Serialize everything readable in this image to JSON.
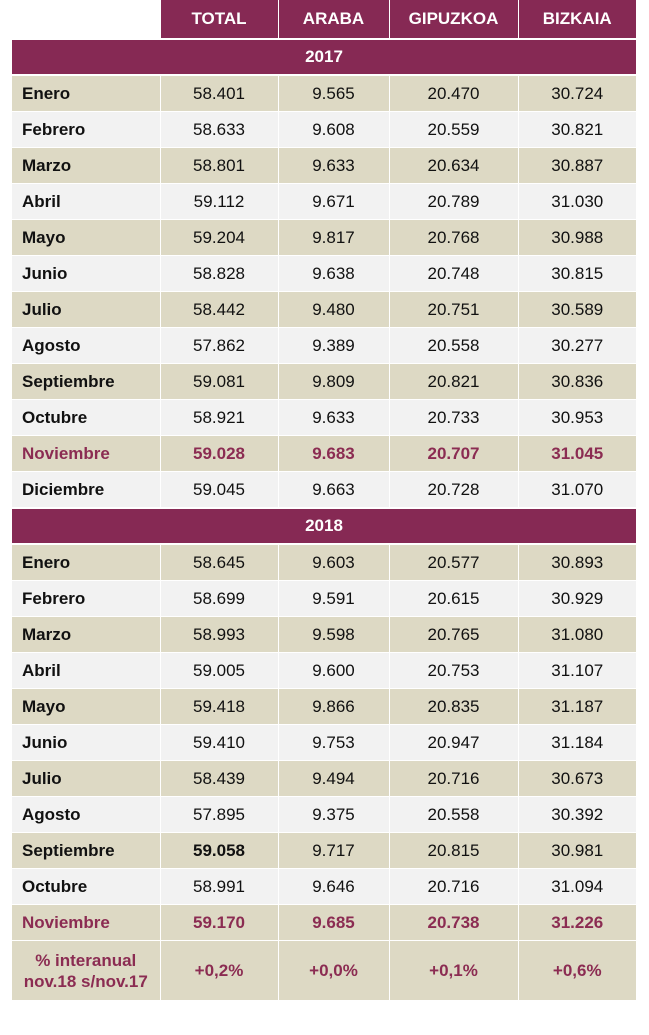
{
  "header": {
    "columns": [
      "TOTAL",
      "ARABA",
      "GIPUZKOA",
      "BIZKAIA"
    ]
  },
  "sections": [
    {
      "year": "2017",
      "rows": [
        {
          "month": "Enero",
          "values": [
            "58.401",
            "9.565",
            "20.470",
            "30.724"
          ]
        },
        {
          "month": "Febrero",
          "values": [
            "58.633",
            "9.608",
            "20.559",
            "30.821"
          ]
        },
        {
          "month": "Marzo",
          "values": [
            "58.801",
            "9.633",
            "20.634",
            "30.887"
          ]
        },
        {
          "month": "Abril",
          "values": [
            "59.112",
            "9.671",
            "20.789",
            "31.030"
          ]
        },
        {
          "month": "Mayo",
          "values": [
            "59.204",
            "9.817",
            "20.768",
            "30.988"
          ]
        },
        {
          "month": "Junio",
          "values": [
            "58.828",
            "9.638",
            "20.748",
            "30.815"
          ]
        },
        {
          "month": "Julio",
          "values": [
            "58.442",
            "9.480",
            "20.751",
            "30.589"
          ]
        },
        {
          "month": "Agosto",
          "values": [
            "57.862",
            "9.389",
            "20.558",
            "30.277"
          ]
        },
        {
          "month": "Septiembre",
          "values": [
            "59.081",
            "9.809",
            "20.821",
            "30.836"
          ]
        },
        {
          "month": "Octubre",
          "values": [
            "58.921",
            "9.633",
            "20.733",
            "30.953"
          ]
        },
        {
          "month": "Noviembre",
          "values": [
            "59.028",
            "9.683",
            "20.707",
            "31.045"
          ]
        },
        {
          "month": "Diciembre",
          "values": [
            "59.045",
            "9.663",
            "20.728",
            "31.070"
          ]
        }
      ]
    },
    {
      "year": "2018",
      "rows": [
        {
          "month": "Enero",
          "values": [
            "58.645",
            "9.603",
            "20.577",
            "30.893"
          ]
        },
        {
          "month": "Febrero",
          "values": [
            "58.699",
            "9.591",
            "20.615",
            "30.929"
          ]
        },
        {
          "month": "Marzo",
          "values": [
            "58.993",
            "9.598",
            "20.765",
            "31.080"
          ]
        },
        {
          "month": "Abril",
          "values": [
            "59.005",
            "9.600",
            "20.753",
            "31.107"
          ]
        },
        {
          "month": "Mayo",
          "values": [
            "59.418",
            "9.866",
            "20.835",
            "31.187"
          ]
        },
        {
          "month": "Junio",
          "values": [
            "59.410",
            "9.753",
            "20.947",
            "31.184"
          ]
        },
        {
          "month": "Julio",
          "values": [
            "58.439",
            "9.494",
            "20.716",
            "30.673"
          ]
        },
        {
          "month": "Agosto",
          "values": [
            "57.895",
            "9.375",
            "20.558",
            "30.392"
          ]
        },
        {
          "month": "Septiembre",
          "values": [
            "59.058",
            "9.717",
            "20.815",
            "30.981"
          ]
        },
        {
          "month": "Octubre",
          "values": [
            "58.991",
            "9.646",
            "20.716",
            "31.094"
          ]
        },
        {
          "month": "Noviembre",
          "values": [
            "59.170",
            "9.685",
            "20.738",
            "31.226"
          ]
        }
      ]
    }
  ],
  "footer": {
    "label_line1": "% interanual",
    "label_line2": "nov.18 s/nov.17",
    "values": [
      "+0,2%",
      "+0,0%",
      "+0,1%",
      "+0,6%"
    ]
  },
  "colors": {
    "header_bg": "#862954",
    "row_tan": "#ddd9c4",
    "row_light": "#f2f2f2",
    "highlight_text": "#8b2c52"
  }
}
